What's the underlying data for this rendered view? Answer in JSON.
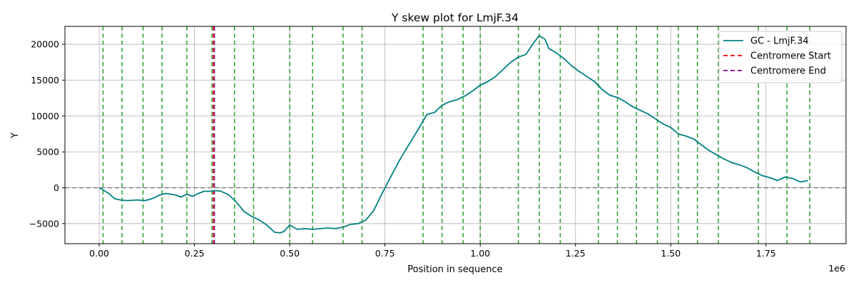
{
  "chart_data": {
    "type": "line",
    "title": "Y skew plot for LmjF.34",
    "xlabel": "Position in sequence",
    "ylabel": "Y",
    "x_offset_label": "1e6",
    "xlim": [
      -90000,
      1960000
    ],
    "ylim": [
      -7800,
      22500
    ],
    "x_ticks": [
      0,
      250000,
      500000,
      750000,
      1000000,
      1250000,
      1500000,
      1750000
    ],
    "x_tick_labels": [
      "0.00",
      "0.25",
      "0.50",
      "0.75",
      "1.00",
      "1.25",
      "1.50",
      "1.75"
    ],
    "y_ticks": [
      -5000,
      0,
      5000,
      10000,
      15000,
      20000
    ],
    "y_tick_labels": [
      "−5000",
      "0",
      "5000",
      "10000",
      "15000",
      "20000"
    ],
    "grid": true,
    "legend_position": "upper right",
    "series": [
      {
        "name": "GC - LmjF.34",
        "color": "#008080",
        "x": [
          0,
          10000,
          25000,
          40000,
          55000,
          75000,
          100000,
          120000,
          140000,
          160000,
          175000,
          200000,
          215000,
          230000,
          245000,
          260000,
          275000,
          290000,
          305000,
          320000,
          340000,
          360000,
          380000,
          400000,
          420000,
          440000,
          460000,
          475000,
          485000,
          500000,
          520000,
          540000,
          560000,
          580000,
          600000,
          620000,
          640000,
          660000,
          680000,
          700000,
          720000,
          750000,
          790000,
          830000,
          860000,
          880000,
          900000,
          920000,
          940000,
          960000,
          980000,
          1000000,
          1020000,
          1040000,
          1060000,
          1080000,
          1100000,
          1120000,
          1140000,
          1155000,
          1170000,
          1180000,
          1200000,
          1220000,
          1240000,
          1260000,
          1280000,
          1300000,
          1320000,
          1340000,
          1360000,
          1380000,
          1400000,
          1420000,
          1440000,
          1460000,
          1480000,
          1500000,
          1520000,
          1540000,
          1560000,
          1580000,
          1600000,
          1620000,
          1640000,
          1660000,
          1680000,
          1700000,
          1720000,
          1740000,
          1760000,
          1780000,
          1800000,
          1820000,
          1840000,
          1860000
        ],
        "y": [
          0,
          -300,
          -800,
          -1500,
          -1700,
          -1800,
          -1700,
          -1800,
          -1500,
          -1000,
          -800,
          -1000,
          -1300,
          -900,
          -1200,
          -800,
          -500,
          -500,
          -400,
          -500,
          -1000,
          -2000,
          -3300,
          -4000,
          -4500,
          -5200,
          -6200,
          -6300,
          -6100,
          -5200,
          -5800,
          -5700,
          -5800,
          -5700,
          -5600,
          -5700,
          -5500,
          -5100,
          -5000,
          -4500,
          -3200,
          0,
          4000,
          7500,
          10200,
          10500,
          11500,
          12000,
          12300,
          12800,
          13500,
          14300,
          14800,
          15500,
          16500,
          17500,
          18200,
          18600,
          20200,
          21200,
          20700,
          19400,
          18800,
          18000,
          17000,
          16200,
          15500,
          14800,
          13700,
          12900,
          12600,
          12000,
          11300,
          10800,
          10300,
          9600,
          8900,
          8400,
          7500,
          7200,
          6800,
          6000,
          5200,
          4600,
          4000,
          3500,
          3200,
          2800,
          2200,
          1700,
          1400,
          1000,
          1500,
          1300,
          800,
          1000
        ]
      }
    ],
    "reference_lines": [
      {
        "name": "Centromere Start",
        "x": 300000,
        "color": "#ff0000",
        "dash": "dashed"
      },
      {
        "name": "Centromere End",
        "x": 302000,
        "color": "#800080",
        "dash": "dashed"
      }
    ],
    "horizontal_line": {
      "y": 0,
      "color": "#808080",
      "dash": "dashed"
    },
    "green_markers": {
      "color": "#2ca02c",
      "x": [
        10000,
        60000,
        115000,
        165000,
        230000,
        296000,
        355000,
        405000,
        500000,
        560000,
        640000,
        690000,
        850000,
        900000,
        955000,
        1000000,
        1100000,
        1155000,
        1210000,
        1310000,
        1360000,
        1410000,
        1465000,
        1520000,
        1570000,
        1625000,
        1730000,
        1805000,
        1865000
      ]
    },
    "legend_entries": [
      "GC - LmjF.34",
      "Centromere Start",
      "Centromere End"
    ]
  }
}
